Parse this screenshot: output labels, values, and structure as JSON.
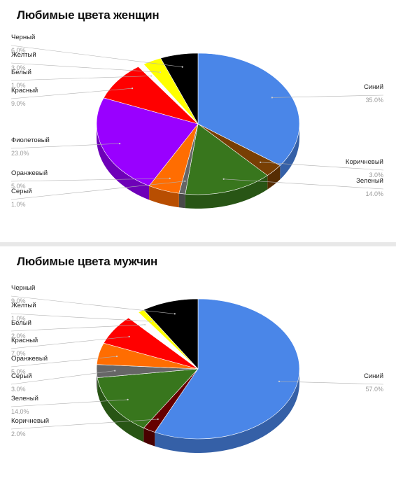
{
  "chart_data": [
    {
      "type": "pie",
      "title": "Любимые цвета женщин",
      "start_angle_deg": 0,
      "slices": [
        {
          "label": "Синий",
          "value": 35.0,
          "pct_text": "35.0%",
          "color": "#4a86e8"
        },
        {
          "label": "Коричневый",
          "value": 3.0,
          "pct_text": "3.0%",
          "color": "#783f04"
        },
        {
          "label": "Зеленый",
          "value": 14.0,
          "pct_text": "14.0%",
          "color": "#38761d"
        },
        {
          "label": "Серый",
          "value": 1.0,
          "pct_text": "1.0%",
          "color": "#666666"
        },
        {
          "label": "Оранжевый",
          "value": 5.0,
          "pct_text": "5.0%",
          "color": "#ff6d01"
        },
        {
          "label": "Фиолетовый",
          "value": 23.0,
          "pct_text": "23.0%",
          "color": "#9900ff"
        },
        {
          "label": "Красный",
          "value": 9.0,
          "pct_text": "9.0%",
          "color": "#ff0000"
        },
        {
          "label": "Белый",
          "value": 1.0,
          "pct_text": "1.0%",
          "color": "#ffffff"
        },
        {
          "label": "Желтый",
          "value": 3.0,
          "pct_text": "3.0%",
          "color": "#ffff00"
        },
        {
          "label": "Черный",
          "value": 6.0,
          "pct_text": "6.0%",
          "color": "#000000"
        }
      ]
    },
    {
      "type": "pie",
      "title": "Любимые цвета мужчин",
      "start_angle_deg": 0,
      "slices": [
        {
          "label": "Синий",
          "value": 57.0,
          "pct_text": "57.0%",
          "color": "#4a86e8"
        },
        {
          "label": "Коричневый",
          "value": 2.0,
          "pct_text": "2.0%",
          "color": "#660000"
        },
        {
          "label": "Зеленый",
          "value": 14.0,
          "pct_text": "14.0%",
          "color": "#38761d"
        },
        {
          "label": "Серый",
          "value": 3.0,
          "pct_text": "3.0%",
          "color": "#666666"
        },
        {
          "label": "Оранжевый",
          "value": 5.0,
          "pct_text": "5.0%",
          "color": "#ff6d01"
        },
        {
          "label": "Красный",
          "value": 7.0,
          "pct_text": "7.0%",
          "color": "#ff0000"
        },
        {
          "label": "Белый",
          "value": 2.0,
          "pct_text": "2.0%",
          "color": "#ffffff"
        },
        {
          "label": "Желтый",
          "value": 1.0,
          "pct_text": "1.0%",
          "color": "#ffff00"
        },
        {
          "label": "Черный",
          "value": 9.0,
          "pct_text": "9.0%",
          "color": "#000000"
        }
      ]
    }
  ]
}
